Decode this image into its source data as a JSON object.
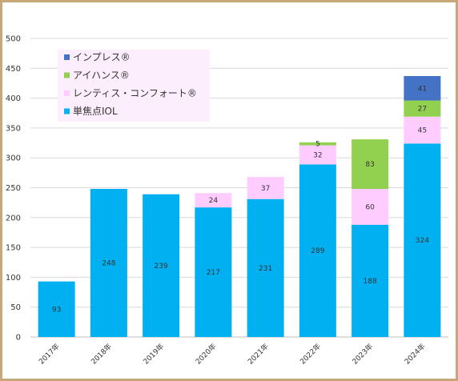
{
  "chart_data": {
    "type": "bar",
    "stacked": true,
    "categories": [
      "2017年",
      "2018年",
      "2019年",
      "2020年",
      "2021年",
      "2022年",
      "2023年",
      "2024年"
    ],
    "series": [
      {
        "name": "単焦点IOL",
        "color": "#00b0f0",
        "values": [
          93,
          248,
          239,
          217,
          231,
          289,
          188,
          324
        ]
      },
      {
        "name": "レンティス・コンフォート®",
        "color": "#ffccff",
        "values": [
          0,
          0,
          0,
          24,
          37,
          32,
          60,
          45
        ]
      },
      {
        "name": "アイハンス®",
        "color": "#92d050",
        "values": [
          0,
          0,
          0,
          0,
          0,
          5,
          83,
          27
        ]
      },
      {
        "name": "インプレス®",
        "color": "#4472c4",
        "values": [
          0,
          0,
          0,
          0,
          0,
          0,
          0,
          41
        ]
      }
    ],
    "ylim": [
      0,
      500
    ],
    "yticks": [
      0,
      50,
      100,
      150,
      200,
      250,
      300,
      350,
      400,
      450,
      500
    ],
    "grid": true,
    "legend": "top-left"
  }
}
